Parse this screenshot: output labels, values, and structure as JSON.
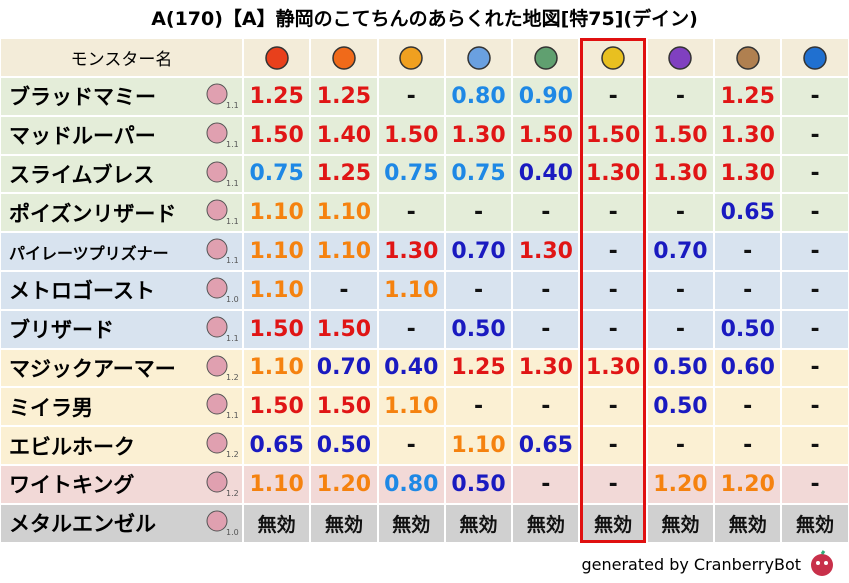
{
  "header": {
    "title": "A(170)【A】静岡のこてちんのあらくれた地図[特75](デイン)",
    "name_column": "モンスター名"
  },
  "rows": [
    {
      "name": "ブラッドマミー",
      "level": "1.1",
      "color": "#e4edd9",
      "values": [
        "1.25",
        "1.25",
        "-",
        "0.80",
        "0.90",
        "-",
        "-",
        "1.25",
        "-"
      ]
    },
    {
      "name": "マッドルーパー",
      "level": "1.1",
      "color": "#e4edd9",
      "values": [
        "1.50",
        "1.40",
        "1.50",
        "1.30",
        "1.50",
        "1.50",
        "1.50",
        "1.30",
        "-"
      ]
    },
    {
      "name": "スライムブレス",
      "level": "1.1",
      "color": "#e4edd9",
      "values": [
        "0.75",
        "1.25",
        "0.75",
        "0.75",
        "0.40",
        "1.30",
        "1.30",
        "1.30",
        "-"
      ]
    },
    {
      "name": "ポイズンリザード",
      "level": "1.1",
      "color": "#e4edd9",
      "values": [
        "1.10",
        "1.10",
        "-",
        "-",
        "-",
        "-",
        "-",
        "0.65",
        "-"
      ]
    },
    {
      "name": "パイレーツプリズナー",
      "level": "1.1",
      "color": "#d8e3ef",
      "values": [
        "1.10",
        "1.10",
        "1.30",
        "0.70",
        "1.30",
        "-",
        "0.70",
        "-",
        "-"
      ]
    },
    {
      "name": "メトロゴースト",
      "level": "1.0",
      "color": "#d8e3ef",
      "values": [
        "1.10",
        "-",
        "1.10",
        "-",
        "-",
        "-",
        "-",
        "-",
        "-"
      ]
    },
    {
      "name": "ブリザード",
      "level": "1.1",
      "color": "#d8e3ef",
      "values": [
        "1.50",
        "1.50",
        "-",
        "0.50",
        "-",
        "-",
        "-",
        "0.50",
        "-"
      ]
    },
    {
      "name": "マジックアーマー",
      "level": "1.2",
      "color": "#fbf0d3",
      "values": [
        "1.10",
        "0.70",
        "0.40",
        "1.25",
        "1.30",
        "1.30",
        "0.50",
        "0.60",
        "-"
      ]
    },
    {
      "name": "ミイラ男",
      "level": "1.1",
      "color": "#fbf0d3",
      "values": [
        "1.50",
        "1.50",
        "1.10",
        "-",
        "-",
        "-",
        "0.50",
        "-",
        "-"
      ]
    },
    {
      "name": "エビルホーク",
      "level": "1.2",
      "color": "#fbf0d3",
      "values": [
        "0.65",
        "0.50",
        "-",
        "1.10",
        "0.65",
        "-",
        "-",
        "-",
        "-"
      ]
    },
    {
      "name": "ワイトキング",
      "level": "1.2",
      "color": "#f2d9d7",
      "values": [
        "1.10",
        "1.20",
        "0.80",
        "0.50",
        "-",
        "-",
        "1.20",
        "1.20",
        "-"
      ]
    },
    {
      "name": "メタルエンゼル",
      "level": "1.0",
      "color": "#d0d0d0",
      "values": [
        "無効",
        "無効",
        "無効",
        "無効",
        "無効",
        "無効",
        "無効",
        "無効",
        "無効"
      ]
    }
  ],
  "footer": "generated by CranberryBot"
}
